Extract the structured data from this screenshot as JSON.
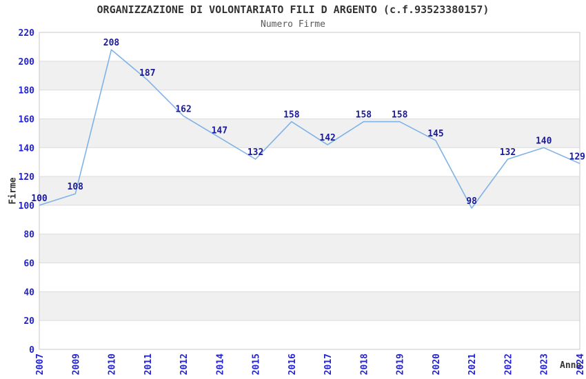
{
  "chart_data": {
    "type": "line",
    "title": "ORGANIZZAZIONE DI VOLONTARIATO FILI D ARGENTO (c.f.93523380157)",
    "subtitle": "Numero Firme",
    "xlabel": "Anno",
    "ylabel": "Firme",
    "categories": [
      "2007",
      "2009",
      "2010",
      "2011",
      "2012",
      "2014",
      "2015",
      "2016",
      "2017",
      "2018",
      "2019",
      "2020",
      "2021",
      "2022",
      "2023",
      "2024"
    ],
    "series": [
      {
        "name": "Numero Firme",
        "values": [
          100,
          108,
          208,
          187,
          162,
          147,
          132,
          158,
          142,
          158,
          158,
          145,
          98,
          132,
          140,
          129
        ]
      }
    ],
    "ylim": [
      0,
      220
    ],
    "ytick_step": 20,
    "grid": "horizontal-bands-alternating",
    "legend": "none",
    "data_labels": true,
    "colors": {
      "line": "#7FB2E6",
      "data_label": "#19199B",
      "tick_label": "#2323CD",
      "band": "#F0F0F0",
      "grid": "#DCDCDC",
      "frame": "#C9C9C9",
      "title": "#333333",
      "subtitle": "#595959",
      "background": "#FFFFFF"
    }
  }
}
